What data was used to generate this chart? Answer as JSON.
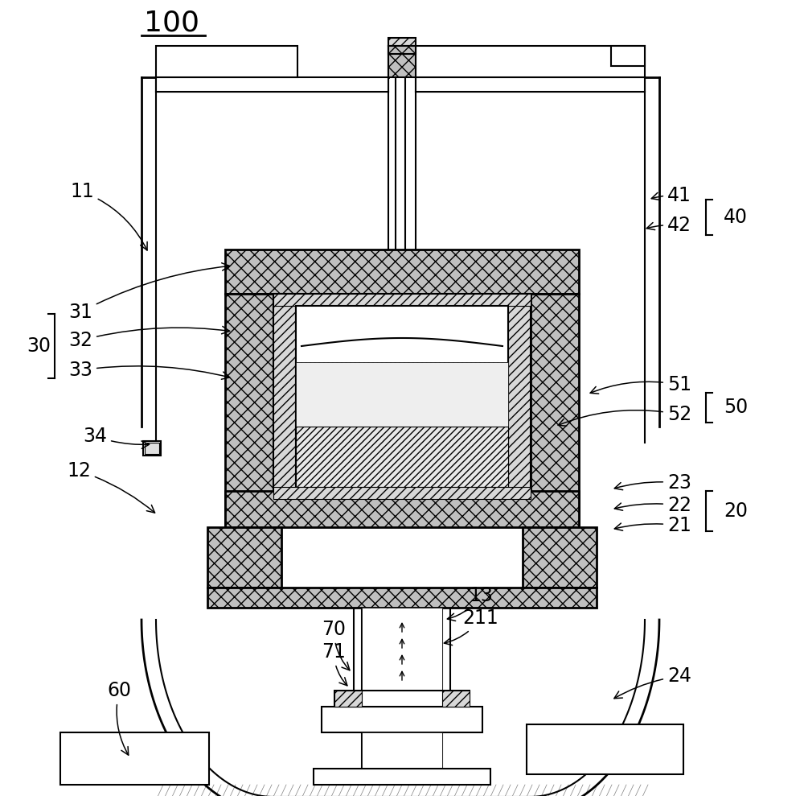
{
  "bg_color": "#ffffff",
  "lw": 1.5,
  "lw2": 2.0,
  "gray_xx": "#c0c0c0",
  "gray_hz": "#d8d8d8",
  "white": "#ffffff"
}
